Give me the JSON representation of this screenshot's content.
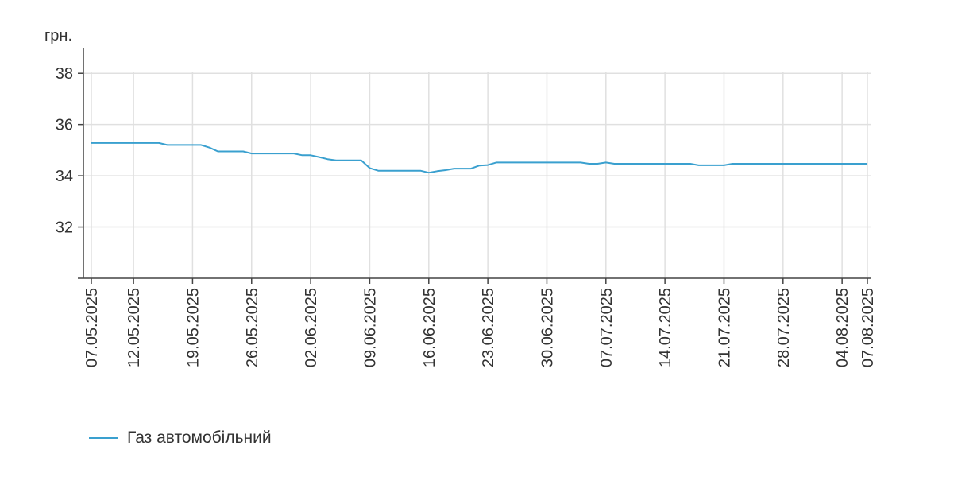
{
  "chart_data": {
    "type": "line",
    "unit_label": "грн.",
    "ylim": [
      30,
      39
    ],
    "yticks": [
      32,
      34,
      36,
      38
    ],
    "xlim": [
      "07.05.2025",
      "07.08.2025"
    ],
    "xticks": [
      "07.05.2025",
      "12.05.2025",
      "19.05.2025",
      "26.05.2025",
      "02.06.2025",
      "09.06.2025",
      "16.06.2025",
      "23.06.2025",
      "30.06.2025",
      "07.07.2025",
      "14.07.2025",
      "21.07.2025",
      "28.07.2025",
      "04.08.2025",
      "07.08.2025"
    ],
    "grid": true,
    "legend_position": "bottom-left",
    "series": [
      {
        "name": "Газ автомобільний",
        "color": "#3aa0cf",
        "points": [
          {
            "x": "07.05.2025",
            "y": 35.28
          },
          {
            "x": "15.05.2025",
            "y": 35.28
          },
          {
            "x": "16.05.2025",
            "y": 35.2
          },
          {
            "x": "20.05.2025",
            "y": 35.2
          },
          {
            "x": "21.05.2025",
            "y": 35.1
          },
          {
            "x": "22.05.2025",
            "y": 34.95
          },
          {
            "x": "25.05.2025",
            "y": 34.95
          },
          {
            "x": "26.05.2025",
            "y": 34.87
          },
          {
            "x": "31.05.2025",
            "y": 34.87
          },
          {
            "x": "01.06.2025",
            "y": 34.8
          },
          {
            "x": "02.06.2025",
            "y": 34.8
          },
          {
            "x": "03.06.2025",
            "y": 34.73
          },
          {
            "x": "04.06.2025",
            "y": 34.65
          },
          {
            "x": "05.06.2025",
            "y": 34.6
          },
          {
            "x": "08.06.2025",
            "y": 34.6
          },
          {
            "x": "09.06.2025",
            "y": 34.3
          },
          {
            "x": "10.06.2025",
            "y": 34.2
          },
          {
            "x": "15.06.2025",
            "y": 34.2
          },
          {
            "x": "16.06.2025",
            "y": 34.12
          },
          {
            "x": "17.06.2025",
            "y": 34.18
          },
          {
            "x": "18.06.2025",
            "y": 34.22
          },
          {
            "x": "19.06.2025",
            "y": 34.28
          },
          {
            "x": "21.06.2025",
            "y": 34.28
          },
          {
            "x": "22.06.2025",
            "y": 34.4
          },
          {
            "x": "23.06.2025",
            "y": 34.42
          },
          {
            "x": "24.06.2025",
            "y": 34.52
          },
          {
            "x": "04.07.2025",
            "y": 34.52
          },
          {
            "x": "05.07.2025",
            "y": 34.47
          },
          {
            "x": "06.07.2025",
            "y": 34.47
          },
          {
            "x": "07.07.2025",
            "y": 34.52
          },
          {
            "x": "08.07.2025",
            "y": 34.47
          },
          {
            "x": "17.07.2025",
            "y": 34.47
          },
          {
            "x": "18.07.2025",
            "y": 34.41
          },
          {
            "x": "21.07.2025",
            "y": 34.41
          },
          {
            "x": "22.07.2025",
            "y": 34.47
          },
          {
            "x": "07.08.2025",
            "y": 34.47
          }
        ]
      }
    ]
  }
}
